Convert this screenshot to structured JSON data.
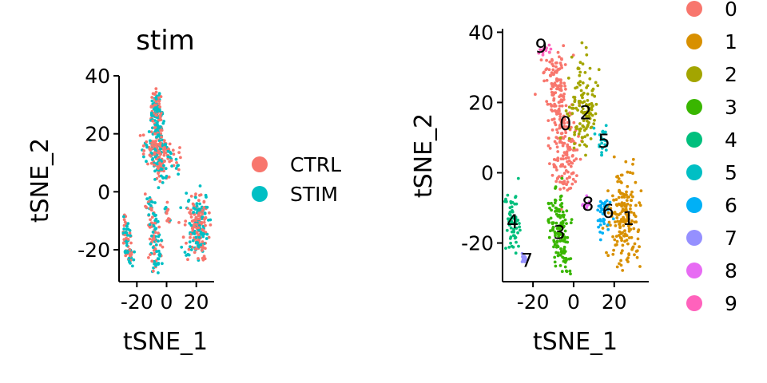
{
  "chart_data": [
    {
      "type": "scatter",
      "title": "stim",
      "xlabel": "tSNE_1",
      "ylabel": "tSNE_2",
      "xlim": [
        -32,
        32
      ],
      "ylim": [
        -31,
        40
      ],
      "xticks": [
        -20,
        0,
        20
      ],
      "xtick_labels": [
        "-20",
        "0",
        "20"
      ],
      "yticks": [
        -20,
        0,
        20,
        40
      ],
      "ytick_labels": [
        "-20",
        "0",
        "20",
        "40"
      ],
      "grid": false,
      "legend_position": "right",
      "legend_title": "",
      "series": [
        {
          "name": "CTRL",
          "color": "#F8766D"
        },
        {
          "name": "STIM",
          "color": "#00BFC4"
        }
      ]
    },
    {
      "type": "scatter",
      "title": "",
      "xlabel": "tSNE_1",
      "ylabel": "tSNE_2",
      "xlim": [
        -35,
        37
      ],
      "ylim": [
        -31,
        41
      ],
      "xticks": [
        -20,
        0,
        20
      ],
      "xtick_labels": [
        "-20",
        "0",
        "20"
      ],
      "yticks": [
        -20,
        0,
        20,
        40
      ],
      "ytick_labels": [
        "-20",
        "0",
        "20",
        "40"
      ],
      "grid": false,
      "legend_position": "right",
      "legend_title": "",
      "series": [
        {
          "name": "0",
          "color": "#F8766D"
        },
        {
          "name": "1",
          "color": "#D89000"
        },
        {
          "name": "2",
          "color": "#A3A500"
        },
        {
          "name": "3",
          "color": "#39B600"
        },
        {
          "name": "4",
          "color": "#00BF7D"
        },
        {
          "name": "5",
          "color": "#00BFC4"
        },
        {
          "name": "6",
          "color": "#00B0F6"
        },
        {
          "name": "7",
          "color": "#9590FF"
        },
        {
          "name": "8",
          "color": "#E76BF3"
        },
        {
          "name": "9",
          "color": "#FF62BC"
        }
      ],
      "cluster_labels": [
        {
          "text": "0",
          "x": -4,
          "y": 14
        },
        {
          "text": "1",
          "x": 27,
          "y": -13
        },
        {
          "text": "2",
          "x": 6,
          "y": 17
        },
        {
          "text": "3",
          "x": -7,
          "y": -17
        },
        {
          "text": "4",
          "x": -30,
          "y": -14
        },
        {
          "text": "5",
          "x": 15,
          "y": 9
        },
        {
          "text": "6",
          "x": 17,
          "y": -11
        },
        {
          "text": "7",
          "x": -23,
          "y": -25
        },
        {
          "text": "8",
          "x": 7,
          "y": -9
        },
        {
          "text": "9",
          "x": -16,
          "y": 36
        }
      ]
    }
  ]
}
